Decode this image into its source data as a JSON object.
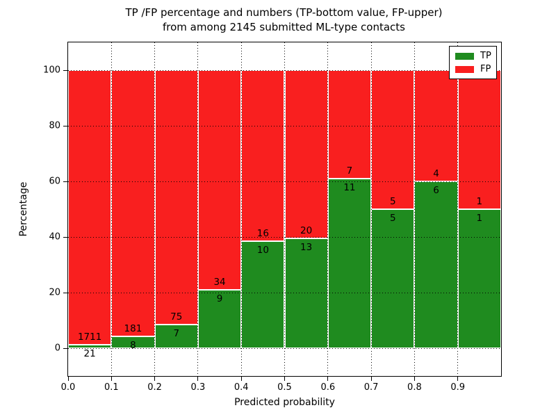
{
  "title": {
    "line1": "TP /FP percentage and numbers (TP-bottom value, FP-upper)",
    "line2": "from among 2145 submitted ML-type contacts"
  },
  "chart_data": {
    "type": "bar",
    "stacked": true,
    "normalized_to_percent": true,
    "title": "TP /FP percentage and numbers (TP-bottom value, FP-upper) from among 2145 submitted ML-type contacts",
    "xlabel": "Predicted probability",
    "ylabel": "Percentage",
    "total_contacts": 2145,
    "bin_width": 0.1,
    "bin_starts": [
      0.0,
      0.1,
      0.2,
      0.3,
      0.4,
      0.5,
      0.6,
      0.7,
      0.8,
      0.9
    ],
    "xticks": [
      "0.0",
      "0.1",
      "0.2",
      "0.3",
      "0.4",
      "0.5",
      "0.6",
      "0.7",
      "0.8",
      "0.9"
    ],
    "yticks": [
      "0",
      "20",
      "40",
      "60",
      "80",
      "100"
    ],
    "ytick_values": [
      0,
      20,
      40,
      60,
      80,
      100
    ],
    "xlim": [
      0.0,
      1.0
    ],
    "ylim": [
      -10,
      110
    ],
    "grid": true,
    "grid_style": "dotted",
    "series": [
      {
        "name": "TP",
        "color": "#1f8b1f",
        "counts": [
          21,
          8,
          7,
          9,
          10,
          13,
          11,
          5,
          6,
          1
        ]
      },
      {
        "name": "FP",
        "color": "#f91f1f",
        "counts": [
          1711,
          181,
          75,
          34,
          16,
          20,
          7,
          5,
          4,
          1
        ]
      }
    ],
    "tp_percent": [
      1.21,
      4.23,
      8.54,
      20.93,
      38.46,
      39.39,
      61.11,
      50.0,
      60.0,
      50.0
    ],
    "legend_position": "upper right"
  },
  "legend": {
    "items": [
      {
        "label": "TP",
        "color": "#1f8b1f"
      },
      {
        "label": "FP",
        "color": "#f91f1f"
      }
    ]
  }
}
